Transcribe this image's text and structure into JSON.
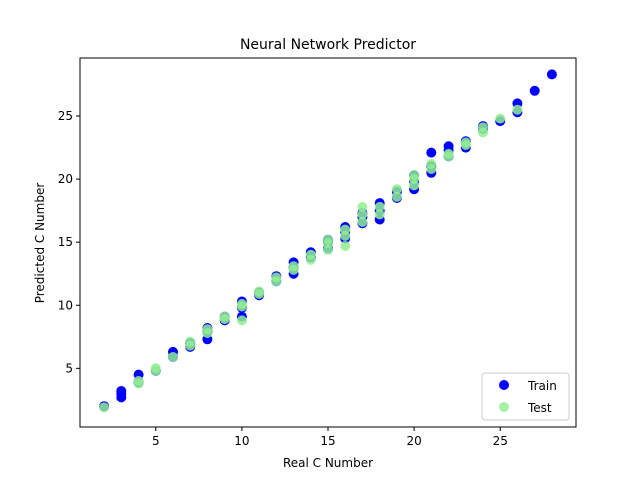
{
  "chart_data": {
    "type": "scatter",
    "title": "Neural Network Predictor",
    "xlabel": "Real C Number",
    "ylabel": "Predicted C Number",
    "xlim": [
      0.6,
      29.4
    ],
    "ylim": [
      0.35,
      29.6
    ],
    "xticks": [
      5,
      10,
      15,
      20,
      25
    ],
    "yticks": [
      5,
      10,
      15,
      20,
      25
    ],
    "grid": false,
    "legend_position": "lower right",
    "series": [
      {
        "name": "Train",
        "color": "#0000ff",
        "points": [
          [
            2,
            2.0
          ],
          [
            3,
            2.7
          ],
          [
            3,
            3.0
          ],
          [
            3,
            3.2
          ],
          [
            4,
            3.9
          ],
          [
            4,
            4.5
          ],
          [
            5,
            4.8
          ],
          [
            6,
            5.9
          ],
          [
            6,
            6.3
          ],
          [
            7,
            6.7
          ],
          [
            7,
            7.0
          ],
          [
            8,
            7.3
          ],
          [
            8,
            7.9
          ],
          [
            8,
            8.2
          ],
          [
            9,
            8.8
          ],
          [
            9,
            9.1
          ],
          [
            10,
            9.1
          ],
          [
            10,
            9.8
          ],
          [
            10,
            10.3
          ],
          [
            11,
            10.8
          ],
          [
            11,
            11.0
          ],
          [
            12,
            11.9
          ],
          [
            12,
            12.3
          ],
          [
            13,
            12.5
          ],
          [
            13,
            13.0
          ],
          [
            13,
            13.4
          ],
          [
            14,
            13.8
          ],
          [
            14,
            14.2
          ],
          [
            15,
            14.5
          ],
          [
            15,
            15.0
          ],
          [
            15,
            15.2
          ],
          [
            16,
            15.3
          ],
          [
            16,
            15.8
          ],
          [
            16,
            16.2
          ],
          [
            17,
            16.5
          ],
          [
            17,
            17.0
          ],
          [
            17,
            17.3
          ],
          [
            18,
            16.8
          ],
          [
            18,
            17.5
          ],
          [
            18,
            18.1
          ],
          [
            19,
            18.5
          ],
          [
            19,
            19.0
          ],
          [
            20,
            19.2
          ],
          [
            20,
            19.8
          ],
          [
            20,
            20.3
          ],
          [
            21,
            20.5
          ],
          [
            21,
            21.0
          ],
          [
            21,
            22.1
          ],
          [
            22,
            21.8
          ],
          [
            22,
            22.3
          ],
          [
            22,
            22.6
          ],
          [
            23,
            22.5
          ],
          [
            23,
            23.0
          ],
          [
            24,
            24.0
          ],
          [
            24,
            24.2
          ],
          [
            25,
            24.6
          ],
          [
            26,
            25.3
          ],
          [
            26,
            26.0
          ],
          [
            27,
            27.0
          ],
          [
            28,
            28.3
          ]
        ]
      },
      {
        "name": "Test",
        "color": "#90ee90",
        "points": [
          [
            2,
            1.9
          ],
          [
            4,
            3.8
          ],
          [
            4,
            4.0
          ],
          [
            5,
            4.8
          ],
          [
            5,
            5.0
          ],
          [
            6,
            5.9
          ],
          [
            7,
            6.8
          ],
          [
            7,
            7.1
          ],
          [
            8,
            7.8
          ],
          [
            8,
            8.1
          ],
          [
            9,
            8.9
          ],
          [
            9,
            9.1
          ],
          [
            10,
            8.8
          ],
          [
            10,
            9.9
          ],
          [
            10,
            10.1
          ],
          [
            11,
            10.9
          ],
          [
            11,
            11.1
          ],
          [
            12,
            11.9
          ],
          [
            12,
            12.2
          ],
          [
            13,
            12.8
          ],
          [
            13,
            13.1
          ],
          [
            14,
            13.6
          ],
          [
            14,
            14.0
          ],
          [
            15,
            14.4
          ],
          [
            15,
            14.9
          ],
          [
            15,
            15.2
          ],
          [
            16,
            14.7
          ],
          [
            16,
            15.5
          ],
          [
            16,
            16.0
          ],
          [
            17,
            16.6
          ],
          [
            17,
            17.2
          ],
          [
            17,
            17.8
          ],
          [
            18,
            17.2
          ],
          [
            18,
            17.8
          ],
          [
            19,
            18.6
          ],
          [
            19,
            19.2
          ],
          [
            20,
            19.5
          ],
          [
            20,
            20.0
          ],
          [
            20,
            20.3
          ],
          [
            21,
            20.8
          ],
          [
            21,
            21.2
          ],
          [
            22,
            21.8
          ],
          [
            22,
            22.0
          ],
          [
            23,
            22.7
          ],
          [
            23,
            22.9
          ],
          [
            24,
            23.7
          ],
          [
            24,
            24.1
          ],
          [
            25,
            24.8
          ],
          [
            26,
            25.5
          ]
        ]
      }
    ]
  }
}
